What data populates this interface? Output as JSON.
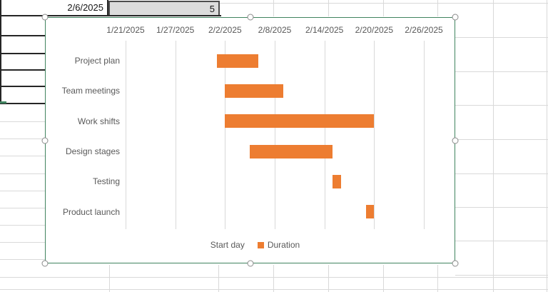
{
  "spreadsheet": {
    "visible_row": {
      "date_value": "2/6/2025",
      "number_value": "5"
    }
  },
  "chart": {
    "selected": true,
    "legend_labels": [
      "Start day",
      "Duration"
    ],
    "colors": {
      "bar_fill": "#ED7D31",
      "selection_border": "#40835F",
      "text": "#595959",
      "gridline": "#D9D9D9"
    }
  },
  "chart_data": {
    "type": "bar",
    "orientation": "horizontal",
    "title": "",
    "categories": [
      "Project plan",
      "Team meetings",
      "Work shifts",
      "Design stages",
      "Testing",
      "Product launch"
    ],
    "x_axis": {
      "tick_labels": [
        "1/21/2025",
        "1/27/2025",
        "2/2/2025",
        "2/8/2025",
        "2/14/2025",
        "2/20/2025",
        "2/26/2025"
      ],
      "min": "1/21/2025",
      "max": "2/26/2025",
      "major_unit_days": 6,
      "position": "top"
    },
    "series": [
      {
        "name": "Start day",
        "fill": "none",
        "start_dates": [
          "2/1/2025",
          "2/2/2025",
          "2/2/2025",
          "2/5/2025",
          "2/15/2025",
          "2/19/2025"
        ]
      },
      {
        "name": "Duration",
        "fill": "#ED7D31",
        "values_days": [
          5,
          7,
          18,
          10,
          1,
          1
        ]
      }
    ],
    "legend_position": "bottom",
    "gridlines": "vertical-major"
  }
}
